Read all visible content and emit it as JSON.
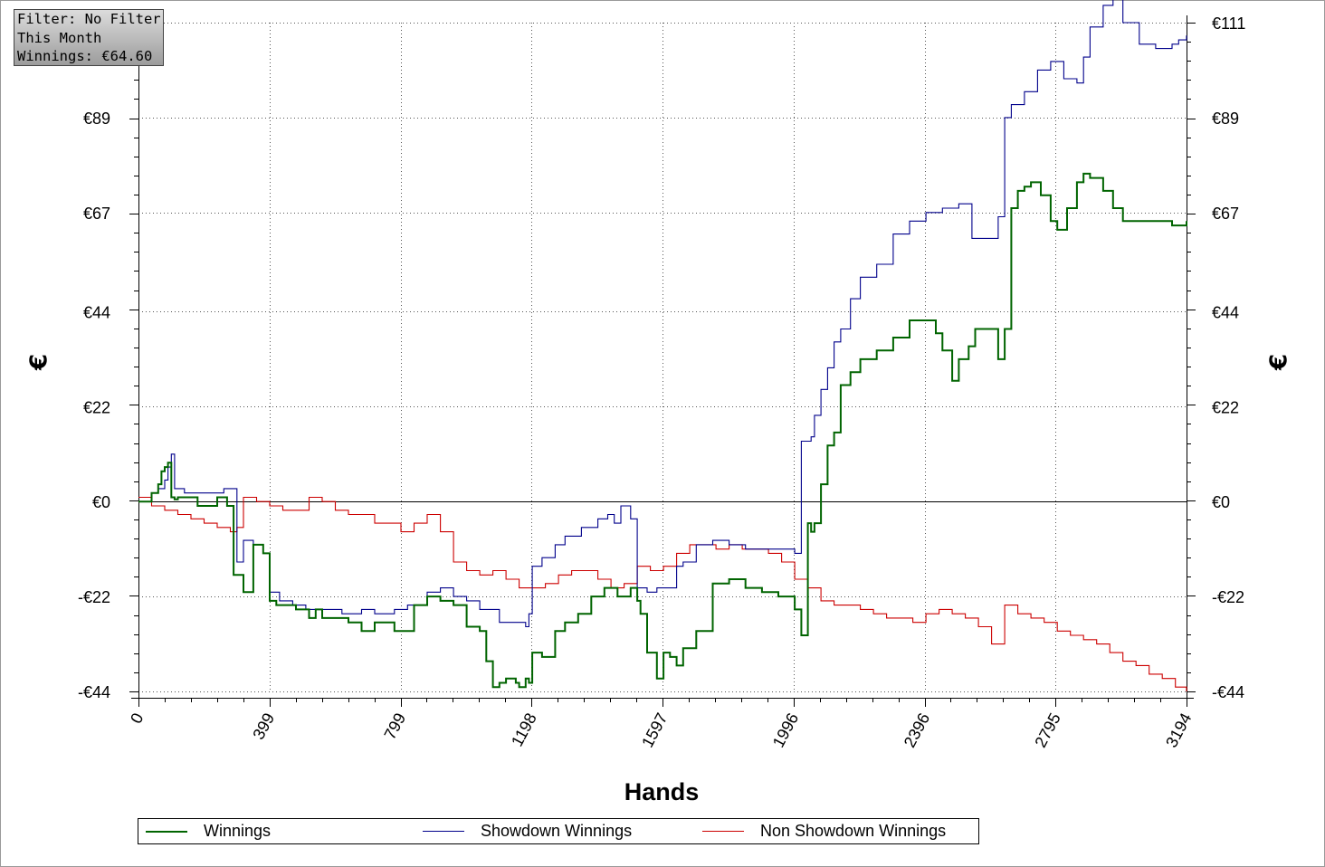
{
  "info_box": {
    "filter_line": "Filter: No Filter",
    "period_line": "This Month",
    "winnings_line": "Winnings: €64.60"
  },
  "chart_data": {
    "type": "line",
    "title": "",
    "xlabel": "Hands",
    "ylabel": "€",
    "ylabel_right": "€",
    "xlim": [
      0,
      3194
    ],
    "ylim": [
      -44,
      111
    ],
    "x_ticks": [
      0,
      399,
      799,
      1198,
      1597,
      1996,
      2396,
      2795,
      3194
    ],
    "x_tick_labels": [
      "0",
      "399",
      "799",
      "1198",
      "1597",
      "1996",
      "2396",
      "2795",
      "3194"
    ],
    "y_ticks": [
      -44,
      -22,
      0,
      22,
      44,
      67,
      89,
      111
    ],
    "y_tick_labels": [
      "-€44",
      "-€22",
      "€0",
      "€22",
      "€44",
      "€67",
      "€89",
      "€111"
    ],
    "grid": true,
    "legend_position": "bottom",
    "colors": {
      "Winnings": "#006400",
      "Showdown Winnings": "#00008b",
      "Non Showdown Winnings": "#cc0000"
    },
    "series": [
      {
        "name": "Winnings",
        "x": [
          0,
          40,
          60,
          70,
          80,
          90,
          100,
          110,
          120,
          180,
          240,
          270,
          290,
          320,
          350,
          380,
          400,
          420,
          480,
          520,
          540,
          560,
          600,
          640,
          680,
          720,
          780,
          840,
          880,
          920,
          960,
          1000,
          1040,
          1060,
          1080,
          1100,
          1120,
          1150,
          1160,
          1180,
          1190,
          1200,
          1230,
          1270,
          1300,
          1340,
          1380,
          1420,
          1460,
          1500,
          1520,
          1530,
          1550,
          1580,
          1600,
          1620,
          1640,
          1660,
          1700,
          1750,
          1800,
          1850,
          1900,
          1950,
          2000,
          2020,
          2040,
          2050,
          2060,
          2080,
          2100,
          2120,
          2140,
          2170,
          2200,
          2250,
          2300,
          2350,
          2400,
          2430,
          2450,
          2480,
          2500,
          2530,
          2550,
          2580,
          2620,
          2640,
          2660,
          2680,
          2700,
          2720,
          2750,
          2780,
          2800,
          2830,
          2860,
          2880,
          2900,
          2940,
          2970,
          3000,
          3050,
          3100,
          3150,
          3194
        ],
        "y": [
          0,
          2,
          4,
          7,
          8,
          9,
          1,
          0.5,
          1,
          -1,
          1,
          -1,
          -17,
          -21,
          -10,
          -12,
          -23,
          -24,
          -25,
          -27,
          -25,
          -27,
          -27,
          -28,
          -30,
          -28,
          -30,
          -24,
          -22,
          -23,
          -24,
          -29,
          -30,
          -37,
          -43,
          -42,
          -41,
          -42,
          -43,
          -41,
          -42,
          -35,
          -36,
          -30,
          -28,
          -26,
          -22,
          -20,
          -22,
          -20,
          -23,
          -26,
          -35,
          -41,
          -35,
          -36,
          -38,
          -34,
          -30,
          -19,
          -18,
          -20,
          -21,
          -22,
          -25,
          -31,
          -5,
          -7,
          -5,
          4,
          13,
          16,
          27,
          30,
          33,
          35,
          38,
          42,
          42,
          39,
          35,
          28,
          33,
          36,
          40,
          40,
          33,
          40,
          68,
          72,
          73,
          74,
          71,
          65,
          63,
          68,
          74,
          76,
          75,
          72,
          68,
          65,
          65,
          65,
          64,
          65
        ]
      },
      {
        "name": "Showdown Winnings",
        "x": [
          0,
          40,
          60,
          80,
          90,
          100,
          110,
          140,
          180,
          220,
          260,
          290,
          300,
          320,
          350,
          380,
          400,
          430,
          470,
          510,
          560,
          620,
          680,
          720,
          780,
          820,
          880,
          920,
          960,
          1000,
          1040,
          1100,
          1140,
          1180,
          1190,
          1200,
          1230,
          1270,
          1300,
          1350,
          1400,
          1430,
          1450,
          1470,
          1500,
          1520,
          1550,
          1580,
          1600,
          1640,
          1660,
          1700,
          1750,
          1800,
          1850,
          1900,
          1950,
          2000,
          2020,
          2040,
          2050,
          2060,
          2080,
          2100,
          2120,
          2140,
          2170,
          2200,
          2250,
          2300,
          2350,
          2400,
          2450,
          2500,
          2540,
          2580,
          2620,
          2640,
          2660,
          2700,
          2740,
          2780,
          2820,
          2860,
          2880,
          2900,
          2940,
          2970,
          3000,
          3050,
          3100,
          3150,
          3170,
          3194
        ],
        "y": [
          0,
          2,
          3,
          5,
          8,
          11,
          3,
          2,
          2,
          2,
          3,
          3,
          -14,
          -9,
          -10,
          -12,
          -21,
          -23,
          -24,
          -25,
          -25,
          -26,
          -25,
          -26,
          -25,
          -24,
          -21,
          -20,
          -22,
          -23,
          -25,
          -28,
          -28,
          -29,
          -26,
          -15,
          -13,
          -10,
          -8,
          -6,
          -4,
          -3,
          -5,
          -1,
          -4,
          -20,
          -21,
          -20,
          -20,
          -15,
          -14,
          -10,
          -9,
          -10,
          -11,
          -11,
          -11,
          -12,
          14,
          14,
          15,
          20,
          26,
          31,
          37,
          40,
          47,
          52,
          55,
          62,
          65,
          67,
          68,
          69,
          61,
          61,
          66,
          89,
          92,
          95,
          100,
          102,
          98,
          97,
          103,
          110,
          115,
          118,
          111,
          106,
          105,
          106,
          107,
          108
        ]
      },
      {
        "name": "Non Showdown Winnings",
        "x": [
          0,
          40,
          80,
          120,
          160,
          200,
          240,
          280,
          300,
          320,
          360,
          400,
          440,
          480,
          520,
          560,
          600,
          640,
          680,
          720,
          760,
          800,
          840,
          880,
          920,
          960,
          1000,
          1040,
          1080,
          1120,
          1160,
          1200,
          1240,
          1280,
          1320,
          1360,
          1400,
          1440,
          1480,
          1520,
          1560,
          1600,
          1640,
          1680,
          1720,
          1760,
          1800,
          1840,
          1880,
          1920,
          1960,
          2000,
          2040,
          2080,
          2120,
          2160,
          2200,
          2240,
          2280,
          2320,
          2360,
          2400,
          2440,
          2480,
          2520,
          2560,
          2600,
          2640,
          2680,
          2720,
          2760,
          2800,
          2840,
          2880,
          2920,
          2960,
          3000,
          3040,
          3080,
          3120,
          3160,
          3194
        ],
        "y": [
          1,
          -1,
          -2,
          -3,
          -4,
          -5,
          -6,
          -7,
          -6,
          1,
          0,
          -1,
          -2,
          -2,
          1,
          0,
          -2,
          -3,
          -3,
          -5,
          -5,
          -7,
          -5,
          -3,
          -7,
          -14,
          -16,
          -17,
          -16,
          -18,
          -20,
          -20,
          -19,
          -17,
          -16,
          -16,
          -18,
          -20,
          -19,
          -15,
          -16,
          -15,
          -12,
          -10,
          -10,
          -11,
          -10,
          -11,
          -11,
          -12,
          -14,
          -18,
          -20,
          -23,
          -24,
          -24,
          -25,
          -26,
          -27,
          -27,
          -28,
          -26,
          -25,
          -26,
          -27,
          -29,
          -33,
          -24,
          -26,
          -27,
          -28,
          -30,
          -31,
          -32,
          -33,
          -35,
          -37,
          -38,
          -40,
          -41,
          -43,
          -44
        ]
      }
    ]
  }
}
